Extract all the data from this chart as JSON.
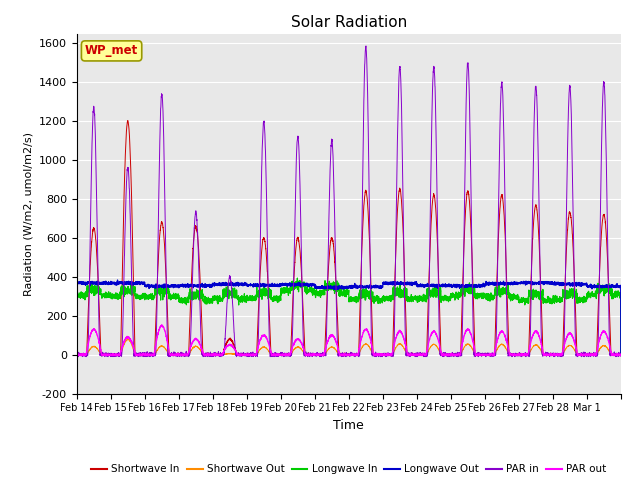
{
  "title": "Solar Radiation",
  "ylabel": "Radiation (W/m2, umol/m2/s)",
  "xlabel": "Time",
  "ylim": [
    -200,
    1650
  ],
  "yticks": [
    -200,
    0,
    200,
    400,
    600,
    800,
    1000,
    1200,
    1400,
    1600
  ],
  "x_labels": [
    "Feb 14",
    "Feb 15",
    "Feb 16",
    "Feb 17",
    "Feb 18",
    "Feb 19",
    "Feb 20",
    "Feb 21",
    "Feb 22",
    "Feb 23",
    "Feb 24",
    "Feb 25",
    "Feb 26",
    "Feb 27",
    "Feb 28",
    "Mar 1"
  ],
  "legend_labels": [
    "Shortwave In",
    "Shortwave Out",
    "Longwave In",
    "Longwave Out",
    "PAR in",
    "PAR out"
  ],
  "legend_colors": [
    "#cc0000",
    "#ff8c00",
    "#00cc00",
    "#0000cc",
    "#8800cc",
    "#ff00ff"
  ],
  "wp_met_color": "#cc0000",
  "wp_met_bg": "#ffff99",
  "background_color": "#e8e8e8",
  "grid_color": "#ffffff",
  "n_days": 16,
  "sw_peaks": [
    650,
    1200,
    680,
    660,
    80,
    600,
    600,
    600,
    840,
    850,
    820,
    840,
    820,
    770,
    730,
    720
  ],
  "par_peaks": [
    1270,
    960,
    1340,
    730,
    400,
    1200,
    1120,
    1100,
    1580,
    1480,
    1480,
    1500,
    1400,
    1380,
    1380,
    1400
  ],
  "par_out_peaks": [
    130,
    90,
    150,
    80,
    50,
    100,
    80,
    100,
    130,
    120,
    120,
    130,
    120,
    120,
    110,
    120
  ],
  "lw_in_base": 300,
  "lw_out_base": 360
}
